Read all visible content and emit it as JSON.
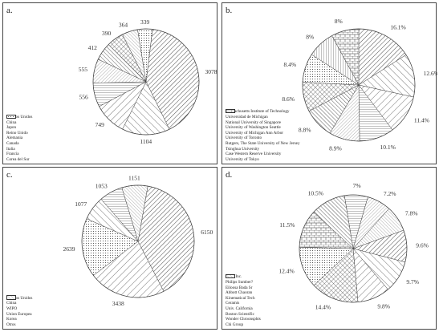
{
  "chart_data": [
    {
      "panel": "a.",
      "type": "pie",
      "slices": [
        {
          "name": "Estados Unidos",
          "value": 3078,
          "label": "3078",
          "pattern": "diag-l-dense"
        },
        {
          "name": "China",
          "value": 1104,
          "label": "1104",
          "pattern": "diag-r"
        },
        {
          "name": "Japon",
          "value": 749,
          "label": "749",
          "pattern": "diag-l"
        },
        {
          "name": "Reino Unido",
          "value": 556,
          "label": "556",
          "pattern": "horiz"
        },
        {
          "name": "Alemania",
          "value": 555,
          "label": "555",
          "pattern": "diag-l-fine"
        },
        {
          "name": "Canada",
          "value": 412,
          "label": "412",
          "pattern": "diag-r-dense"
        },
        {
          "name": "Italia",
          "value": 390,
          "label": "390",
          "pattern": "cross"
        },
        {
          "name": "Francia",
          "value": 364,
          "label": "364",
          "pattern": "diag-r-fine"
        },
        {
          "name": "Corea del Sur",
          "value": 339,
          "label": "339",
          "pattern": "dots"
        }
      ]
    },
    {
      "panel": "b.",
      "type": "pie",
      "slices": [
        {
          "name": "Massachusetts Institute of Technology",
          "value": 16.1,
          "label": "16.1%",
          "pattern": "diag-l-dense"
        },
        {
          "name": "Universidad de Michigan",
          "value": 12.6,
          "label": "12.6%",
          "pattern": "diag-r"
        },
        {
          "name": "National University of Singapore",
          "value": 11.4,
          "label": "11.4%",
          "pattern": "diag-l"
        },
        {
          "name": "University of Washington Seattle",
          "value": 10.1,
          "label": "10.1%",
          "pattern": "horiz"
        },
        {
          "name": "University of Michigan Ann Arbor",
          "value": 8.9,
          "label": "8.9%",
          "pattern": "diag-l-fine"
        },
        {
          "name": "University of Toronto",
          "value": 8.8,
          "label": "8.8%",
          "pattern": "diag-r-dense"
        },
        {
          "name": "Rutgers, The State University of New Jersey",
          "value": 8.6,
          "label": "8.6%",
          "pattern": "cross"
        },
        {
          "name": "Tsinghua University",
          "value": 8.4,
          "label": "8.4%",
          "pattern": "dots"
        },
        {
          "name": "Case Western Reserve University",
          "value": 8,
          "label": "8%",
          "pattern": "vert"
        },
        {
          "name": "University of Tokyo",
          "value": 8,
          "label": "8%",
          "pattern": "brick"
        }
      ]
    },
    {
      "panel": "c.",
      "type": "pie",
      "slices": [
        {
          "name": "Estados Unidos",
          "value": 6150,
          "label": "6150",
          "pattern": "diag-l-dense"
        },
        {
          "name": "China",
          "value": 3438,
          "label": "3438",
          "pattern": "diag-l"
        },
        {
          "name": "WIPO",
          "value": 2639,
          "label": "2639",
          "pattern": "dots"
        },
        {
          "name": "Union Europea",
          "value": 1077,
          "label": "1077",
          "pattern": "diag-r"
        },
        {
          "name": "Korea",
          "value": 1053,
          "label": "1053",
          "pattern": "horiz"
        },
        {
          "name": "Otros",
          "value": 1151,
          "label": "1151",
          "pattern": "diag-r-fine"
        }
      ]
    },
    {
      "panel": "d.",
      "type": "pie",
      "slices": [
        {
          "name": "Cree, Inc.",
          "value": 9.6,
          "label": "9.6%",
          "pattern": "diag-l-dense"
        },
        {
          "name": "Philips Sumber?",
          "value": 9.7,
          "label": "9.7%",
          "pattern": "diag-r"
        },
        {
          "name": "Eiloosa Bada Sr",
          "value": 9.8,
          "label": "9.8%",
          "pattern": "diag-l"
        },
        {
          "name": "Abbott Chaoran",
          "value": 14.4,
          "label": "14.4%",
          "pattern": "cross"
        },
        {
          "name": "Kinematical Tech",
          "value": 12.4,
          "label": "12.4%",
          "pattern": "dots"
        },
        {
          "name": "Ceramis",
          "value": 11.5,
          "label": "11.5%",
          "pattern": "brick"
        },
        {
          "name": "Univ. California",
          "value": 10.5,
          "label": "10.5%",
          "pattern": "diag-r-dense"
        },
        {
          "name": "Boston Scientific",
          "value": 7,
          "label": "7%",
          "pattern": "horiz"
        },
        {
          "name": "Wonder Chroonsphts",
          "value": 7.2,
          "label": "7.2%",
          "pattern": "diag-l-fine"
        },
        {
          "name": "Chi Group",
          "value": 7.8,
          "label": "7.8%",
          "pattern": "diag-r-fine"
        }
      ]
    }
  ]
}
